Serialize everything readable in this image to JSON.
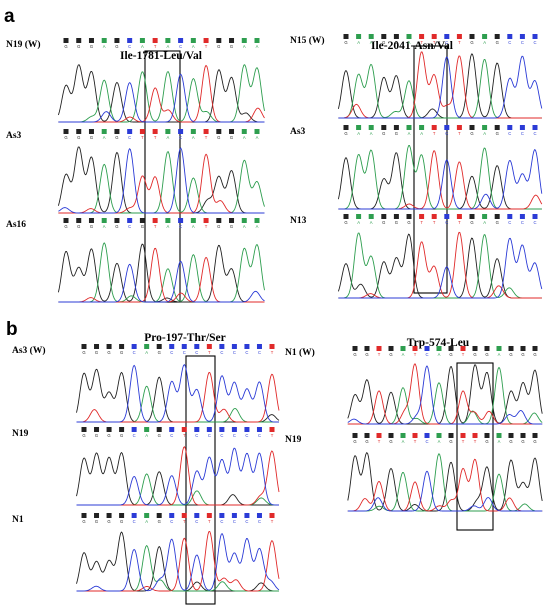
{
  "panels": [
    {
      "label": "a",
      "title": "Ile-1781-Leu/Val",
      "samples": [
        {
          "label": "N19 (W)",
          "bases": [
            "G",
            "G",
            "G",
            "A",
            "G",
            "C",
            "A",
            "T",
            "A",
            "C",
            "A",
            "T",
            "G",
            "G",
            "A",
            "A"
          ]
        },
        {
          "label": "As3",
          "bases": [
            "G",
            "G",
            "G",
            "A",
            "G",
            "C",
            "T",
            "T",
            "A",
            "C",
            "A",
            "T",
            "G",
            "G",
            "A",
            "A"
          ]
        },
        {
          "label": "As16",
          "bases": [
            "G",
            "G",
            "G",
            "A",
            "G",
            "C",
            "G",
            "T",
            "A",
            "C",
            "A",
            "T",
            "G",
            "G",
            "A",
            "A"
          ]
        }
      ]
    },
    {
      "label": "",
      "title": "Ile-2041-Asn/Val",
      "samples": [
        {
          "label": "N15 (W)",
          "bases": [
            "G",
            "A",
            "A",
            "G",
            "G",
            "A",
            "T",
            "T",
            "C",
            "T",
            "G",
            "A",
            "G",
            "C",
            "C",
            "C"
          ]
        },
        {
          "label": "As3",
          "bases": [
            "G",
            "A",
            "A",
            "G",
            "G",
            "A",
            "A",
            "T",
            "C",
            "T",
            "G",
            "A",
            "G",
            "C",
            "C",
            "C"
          ]
        },
        {
          "label": "N13",
          "bases": [
            "G",
            "A",
            "A",
            "G",
            "G",
            "G",
            "T",
            "T",
            "C",
            "T",
            "G",
            "A",
            "G",
            "C",
            "C",
            "C"
          ]
        }
      ]
    },
    {
      "label": "b",
      "title": "Pro-197-Thr/Ser",
      "samples": [
        {
          "label": "As3 (W)",
          "bases": [
            "G",
            "G",
            "G",
            "G",
            "C",
            "A",
            "G",
            "C",
            "C",
            "C",
            "T",
            "C",
            "C",
            "C",
            "C",
            "T"
          ]
        },
        {
          "label": "N19",
          "bases": [
            "G",
            "G",
            "G",
            "G",
            "C",
            "A",
            "G",
            "C",
            "T",
            "C",
            "C",
            "C",
            "C",
            "C",
            "C",
            "T"
          ]
        },
        {
          "label": "N1",
          "bases": [
            "G",
            "G",
            "G",
            "G",
            "C",
            "A",
            "G",
            "C",
            "T",
            "C",
            "T",
            "C",
            "C",
            "C",
            "C",
            "T"
          ]
        }
      ]
    },
    {
      "label": "",
      "title": "Trp-574-Leu",
      "samples": [
        {
          "label": "N1 (W)",
          "bases": [
            "G",
            "G",
            "T",
            "G",
            "A",
            "T",
            "C",
            "A",
            "G",
            "T",
            "G",
            "G",
            "A",
            "G",
            "G",
            "G"
          ]
        },
        {
          "label": "N19",
          "bases": [
            "G",
            "G",
            "T",
            "G",
            "A",
            "T",
            "C",
            "A",
            "G",
            "T",
            "T",
            "G",
            "A",
            "G",
            "G",
            "G"
          ]
        }
      ]
    }
  ],
  "base_colors": {
    "A": "#2e9e4f",
    "C": "#2b3bd6",
    "G": "#222222",
    "T": "#e02a2a",
    "mixed": "#d05ad0"
  }
}
